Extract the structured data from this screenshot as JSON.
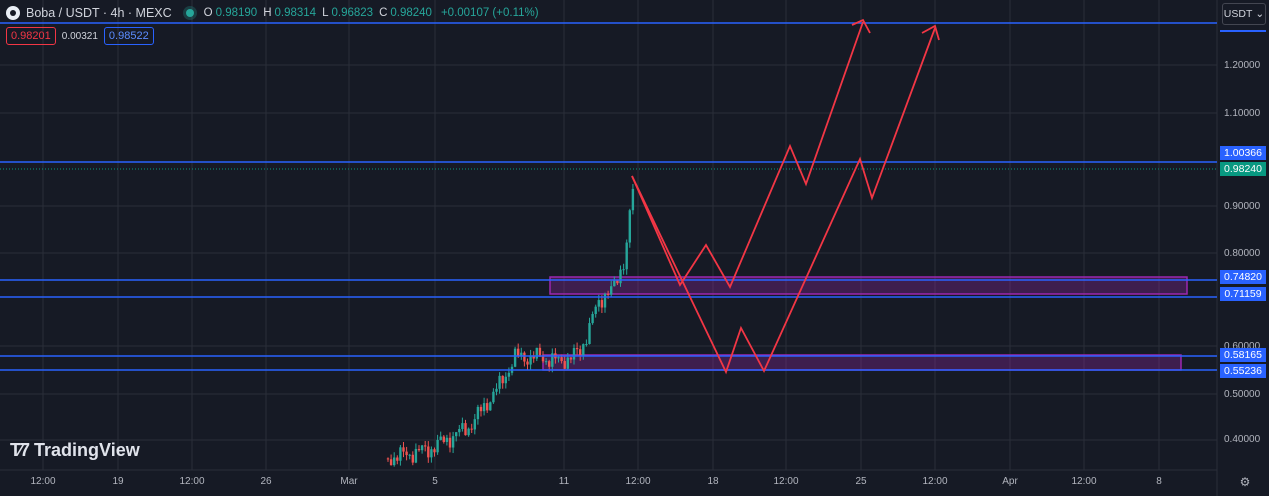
{
  "header": {
    "symbol": "Boba / USDT · 4h · MEXC",
    "ohlc": [
      {
        "k": "O",
        "v": "0.98190"
      },
      {
        "k": "H",
        "v": "0.98314"
      },
      {
        "k": "L",
        "v": "0.96823"
      },
      {
        "k": "C",
        "v": "0.98240"
      }
    ],
    "change": "+0.00107 (+0.11%)"
  },
  "quote": {
    "sell": "0.98201",
    "spread": "0.00321",
    "buy": "0.98522"
  },
  "currency_button": {
    "label": "USDT",
    "icon": "chevron-down-icon"
  },
  "y_axis_ticks": [
    "1.20000",
    "1.10000",
    "0.90000",
    "0.80000",
    "0.60000",
    "0.50000",
    "0.40000"
  ],
  "x_axis_ticks": [
    "12:00",
    "19",
    "12:00",
    "26",
    "Mar",
    "5",
    "11",
    "12:00",
    "18",
    "12:00",
    "25",
    "12:00",
    "Apr",
    "12:00",
    "8"
  ],
  "price_labels": {
    "l1": "1.00366",
    "last": "0.98240",
    "l2": "0.74820",
    "l3": "0.71159",
    "l4": "0.58165",
    "l5": "0.55236"
  },
  "logo": {
    "text": "TradingView",
    "icon": "tradingview-logo-icon"
  },
  "settings": {
    "icon": "gear-icon"
  },
  "colors": {
    "background": "#161a25",
    "up": "#26a69a",
    "down": "#ef5350",
    "level_line": "#2962ff",
    "zone": "#9c27b0",
    "projection": "#f23645"
  }
}
